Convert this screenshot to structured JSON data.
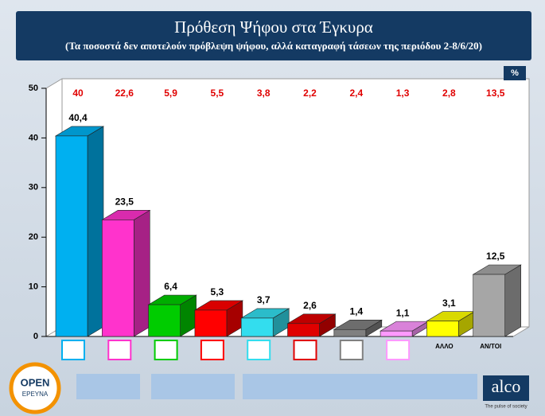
{
  "chart_data": {
    "type": "bar",
    "title": "Πρόθεση Ψήφου στα Έγκυρα",
    "subtitle": "(Τα ποσοστά δεν αποτελούν πρόβλεψη ψήφου, αλλά καταγραφή τάσεων της περιόδου 2-8/6/20)",
    "unit_label": "%",
    "categories": [
      null,
      null,
      null,
      null,
      null,
      null,
      null,
      null,
      "ΑΛΛΟ",
      "ΑΝ/ΤΟΙ"
    ],
    "series": [
      {
        "values": [
          40.4,
          23.5,
          6.4,
          5.3,
          3.7,
          2.6,
          1.4,
          1.1,
          3.1,
          12.5
        ],
        "value_labels": [
          "40,4",
          "23,5",
          "6,4",
          "5,3",
          "3,7",
          "2,6",
          "1,4",
          "1,1",
          "3,1",
          "12,5"
        ],
        "colors": [
          "#00b0f0",
          "#ff33cc",
          "#00cc00",
          "#ff0000",
          "#33ddee",
          "#e00000",
          "#808080",
          "#ff99ff",
          "#ffff00",
          "#a6a6a6"
        ]
      }
    ],
    "previous": {
      "values": [
        40,
        22.6,
        5.9,
        5.5,
        3.8,
        2.2,
        2.4,
        1.3,
        2.8,
        13.5
      ],
      "value_labels": [
        "40",
        "22,6",
        "5,9",
        "5,5",
        "3,8",
        "2,2",
        "2,4",
        "1,3",
        "2,8",
        "13,5"
      ],
      "color": "#e00000"
    },
    "ylim": [
      0,
      50
    ],
    "yticks": [
      0,
      10,
      20,
      30,
      40,
      50
    ]
  },
  "branding": {
    "left_top": "OPEN",
    "left_bottom": "ΕΡΕΥΝΑ",
    "right": "alco",
    "right_tagline": "The pulse of society"
  }
}
